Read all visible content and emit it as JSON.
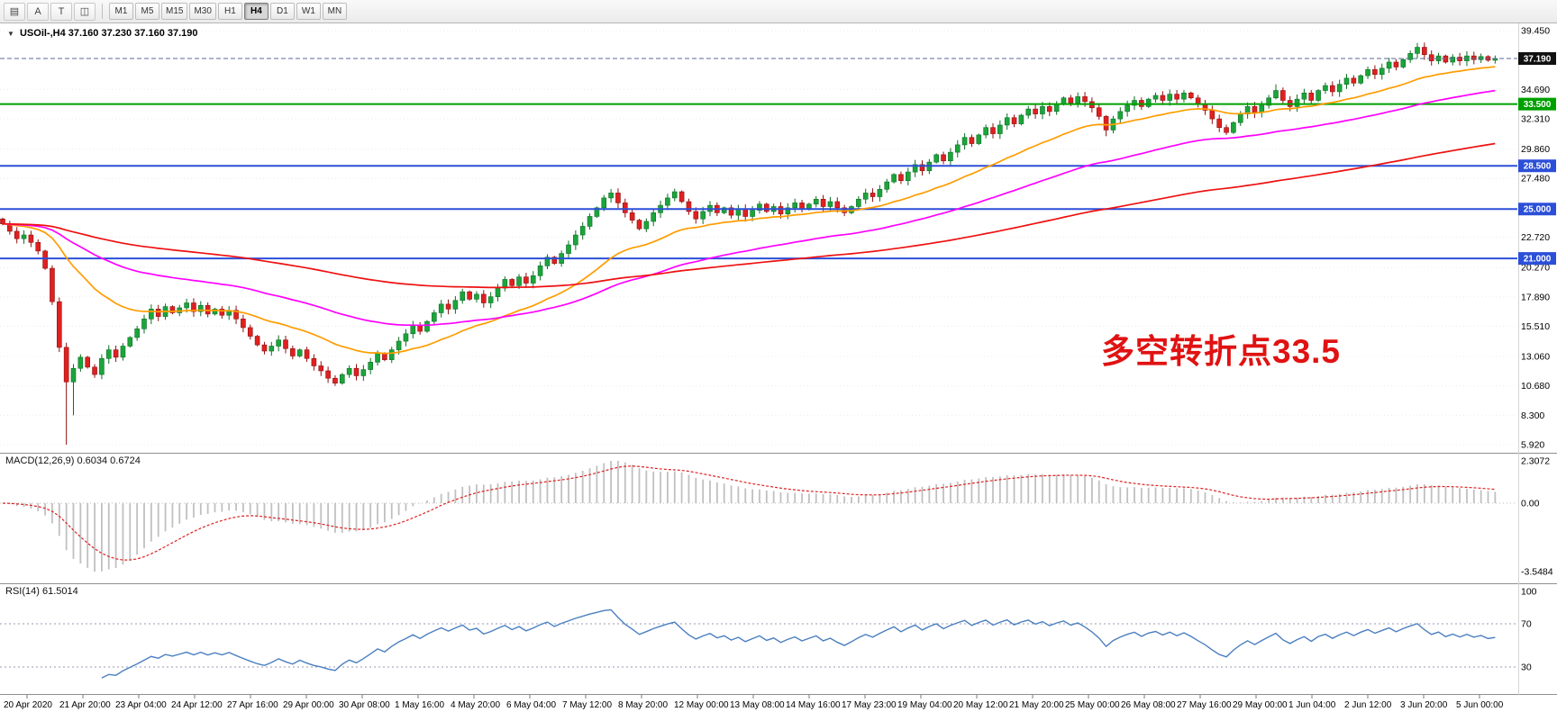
{
  "toolbar": {
    "tools": [
      {
        "name": "charts-grid-icon",
        "glyph": "▤"
      },
      {
        "name": "cursor-arrow-tool-icon",
        "glyph": "A"
      },
      {
        "name": "text-label-tool-icon",
        "glyph": "T"
      },
      {
        "name": "draw-objects-tool-icon",
        "glyph": "◫"
      }
    ],
    "timeframes": [
      "M1",
      "M5",
      "M15",
      "M30",
      "H1",
      "H4",
      "D1",
      "W1",
      "MN"
    ],
    "active_timeframe": "H4"
  },
  "main_chart": {
    "collapse_icon": "▼",
    "symbol_label": "USOil-,H4 37.160 37.230 37.160 37.190",
    "annotation": {
      "text": "多空转折点33.5",
      "color": "#e01212"
    },
    "up_color": "#1ba53a",
    "up_stroke": "#0d6f25",
    "down_color": "#e02020",
    "down_stroke": "#8f0f0f",
    "price_ticks": [
      {
        "label": "39.450",
        "price": 39.45
      },
      {
        "label": "34.690",
        "price": 34.69
      },
      {
        "label": "32.310",
        "price": 32.31
      },
      {
        "label": "29.860",
        "price": 29.86
      },
      {
        "label": "27.480",
        "price": 27.48
      },
      {
        "label": "22.720",
        "price": 22.72
      },
      {
        "label": "20.270",
        "price": 20.27
      },
      {
        "label": "17.890",
        "price": 17.89
      },
      {
        "label": "15.510",
        "price": 15.51
      },
      {
        "label": "13.060",
        "price": 13.06
      },
      {
        "label": "10.680",
        "price": 10.68
      },
      {
        "label": "8.300",
        "price": 8.3
      },
      {
        "label": "5.920",
        "price": 5.92
      }
    ],
    "level_lines": [
      {
        "name": "current-price-line",
        "price": 37.19,
        "color": "#5a6a9a",
        "width": 1,
        "dash": "5,3"
      },
      {
        "name": "green-level-line-33-5",
        "price": 33.5,
        "color": "#00a000",
        "width": 2
      },
      {
        "name": "blue-level-line-28-5",
        "price": 28.5,
        "color": "#2c4fd8",
        "width": 2
      },
      {
        "name": "blue-level-line-25-0",
        "price": 25.0,
        "color": "#2c4fd8",
        "width": 2
      },
      {
        "name": "blue-level-line-21-0",
        "price": 21.0,
        "color": "#2c4fd8",
        "width": 2
      }
    ],
    "badges": [
      {
        "label": "37.190",
        "price": 37.19,
        "color": "#111111",
        "text_color": "#ffffff"
      },
      {
        "label": "33.500",
        "price": 33.5,
        "color": "#00a000",
        "text_color": "#ffffff"
      },
      {
        "label": "28.500",
        "price": 28.5,
        "color": "#2c4fd8",
        "text_color": "#ffffff"
      },
      {
        "label": "25.000",
        "price": 25.0,
        "color": "#2c4fd8",
        "text_color": "#ffffff"
      },
      {
        "label": "21.000",
        "price": 21.0,
        "color": "#2c4fd8",
        "text_color": "#ffffff"
      }
    ],
    "ma_lines": [
      {
        "name": "fast-ma",
        "period": 24,
        "color": "#ff9c00"
      },
      {
        "name": "mid-ma",
        "period": 60,
        "color": "#ff00ff"
      },
      {
        "name": "slow-ma",
        "period": 150,
        "color": "#ee1111"
      }
    ]
  },
  "macd_panel": {
    "label": "MACD(12,26,9) 0.6034 0.6724",
    "fast": 12,
    "slow": 26,
    "signal": 9,
    "ticks": [
      "2.3072",
      "0.00",
      "-3.5484"
    ],
    "histogram_color": "#c0c0c0",
    "signal_color": "#dd2222"
  },
  "rsi_panel": {
    "label": "RSI(14) 61.5014",
    "period": 14,
    "ticks": [
      "100",
      "70",
      "30"
    ],
    "levels": [
      70,
      30
    ],
    "line_color": "#4a7fc0"
  },
  "time_axis": [
    "20 Apr 2020",
    "21 Apr 20:00",
    "23 Apr 04:00",
    "24 Apr 12:00",
    "27 Apr 16:00",
    "29 Apr 00:00",
    "30 Apr 08:00",
    "1 May 16:00",
    "4 May 20:00",
    "6 May 04:00",
    "7 May 12:00",
    "8 May 20:00",
    "12 May 00:00",
    "13 May 08:00",
    "14 May 16:00",
    "17 May 23:00",
    "19 May 04:00",
    "20 May 12:00",
    "21 May 20:00",
    "25 May 00:00",
    "26 May 08:00",
    "27 May 16:00",
    "29 May 00:00",
    "1 Jun 04:00",
    "2 Jun 12:00",
    "3 Jun 20:00",
    "5 Jun 00:00"
  ],
  "chart_data": {
    "type": "candlestick",
    "symbol": "USOil-",
    "timeframe": "H4",
    "current_ohlc": {
      "open": 37.16,
      "high": 37.23,
      "low": 37.16,
      "close": 37.19
    },
    "y_range": [
      5.92,
      39.45
    ],
    "first_open": 24.2,
    "closes": [
      23.8,
      23.2,
      22.6,
      22.9,
      22.3,
      21.6,
      20.2,
      17.5,
      13.8,
      11.0,
      12.1,
      13.0,
      12.2,
      11.6,
      12.9,
      13.6,
      13.0,
      13.9,
      14.6,
      15.3,
      16.1,
      16.9,
      16.3,
      17.1,
      16.6,
      17.0,
      17.4,
      16.7,
      17.2,
      16.5,
      16.9,
      16.4,
      16.8,
      16.1,
      15.4,
      14.7,
      14.0,
      13.5,
      13.9,
      14.4,
      13.7,
      13.1,
      13.6,
      12.9,
      12.3,
      11.9,
      11.3,
      10.9,
      11.6,
      12.1,
      11.5,
      12.0,
      12.6,
      13.3,
      12.8,
      13.6,
      14.3,
      14.9,
      15.6,
      15.1,
      15.9,
      16.6,
      17.3,
      16.9,
      17.6,
      18.3,
      17.7,
      18.1,
      17.4,
      17.9,
      18.6,
      19.3,
      18.8,
      19.5,
      19.0,
      19.6,
      20.4,
      21.1,
      20.6,
      21.4,
      22.1,
      22.9,
      23.6,
      24.4,
      25.1,
      25.9,
      26.3,
      25.5,
      24.7,
      24.1,
      23.4,
      24.0,
      24.7,
      25.3,
      25.9,
      26.4,
      25.6,
      24.8,
      24.2,
      24.8,
      25.3,
      24.7,
      25.1,
      24.5,
      25.0,
      24.4,
      24.9,
      25.4,
      24.8,
      25.2,
      24.6,
      25.1,
      25.5,
      25.0,
      25.4,
      25.8,
      25.2,
      25.6,
      25.1,
      24.7,
      25.2,
      25.8,
      26.3,
      26.0,
      26.6,
      27.2,
      27.8,
      27.3,
      28.0,
      28.6,
      28.1,
      28.8,
      29.4,
      28.9,
      29.6,
      30.2,
      30.8,
      30.3,
      31.0,
      31.6,
      31.1,
      31.8,
      32.4,
      31.9,
      32.6,
      33.1,
      32.7,
      33.3,
      32.9,
      33.5,
      34.0,
      33.6,
      34.1,
      33.7,
      33.2,
      32.5,
      31.4,
      32.3,
      32.9,
      33.4,
      33.8,
      33.3,
      33.9,
      34.2,
      33.8,
      34.3,
      33.9,
      34.4,
      34.0,
      33.5,
      33.0,
      32.3,
      31.6,
      31.2,
      32.0,
      32.7,
      33.3,
      32.8,
      33.4,
      34.0,
      34.6,
      33.8,
      33.3,
      33.9,
      34.4,
      33.8,
      34.6,
      35.0,
      34.5,
      35.1,
      35.6,
      35.2,
      35.8,
      36.3,
      35.9,
      36.4,
      36.9,
      36.5,
      37.1,
      37.6,
      38.1,
      37.5,
      37.0,
      37.4,
      36.9,
      37.3,
      37.0,
      37.4,
      37.1,
      37.35,
      37.05,
      37.19
    ],
    "wick_overrides": {
      "9": {
        "low": 5.92
      },
      "10": {
        "low": 8.3
      },
      "47": {
        "low": 10.68
      },
      "86": {
        "high": 26.62
      },
      "95": {
        "high": 26.65
      },
      "156": {
        "low": 30.9
      },
      "173": {
        "low": 31.0
      },
      "180": {
        "high": 35.1
      },
      "200": {
        "high": 38.45
      }
    },
    "macd_current": [
      0.6034,
      0.6724
    ],
    "rsi_current": 61.5014
  }
}
